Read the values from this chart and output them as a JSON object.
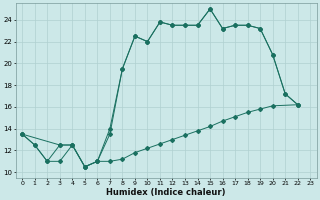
{
  "xlabel": "Humidex (Indice chaleur)",
  "bg_color": "#cce8e8",
  "grid_color_major": "#b0d0d0",
  "grid_color_minor": "#daeaea",
  "line_color": "#1a7060",
  "xlim": [
    -0.5,
    23.5
  ],
  "ylim": [
    9.5,
    25.5
  ],
  "xticks": [
    0,
    1,
    2,
    3,
    4,
    5,
    6,
    7,
    8,
    9,
    10,
    11,
    12,
    13,
    14,
    15,
    16,
    17,
    18,
    19,
    20,
    21,
    22,
    23
  ],
  "yticks": [
    10,
    12,
    14,
    16,
    18,
    20,
    22,
    24
  ],
  "line1_x": [
    0,
    1,
    2,
    3,
    4,
    5,
    6,
    7,
    8,
    9,
    10,
    11,
    12,
    13,
    14,
    15,
    16,
    17,
    18,
    19,
    20,
    21,
    22
  ],
  "line1_y": [
    13.5,
    12.5,
    11.0,
    11.0,
    12.5,
    10.5,
    11.0,
    13.5,
    19.5,
    22.5,
    22.0,
    23.8,
    23.5,
    23.5,
    23.5,
    25.0,
    23.2,
    23.5,
    23.5,
    23.2,
    20.8,
    17.2,
    16.2
  ],
  "line2_x": [
    0,
    3,
    4,
    5,
    6,
    7,
    8,
    9,
    10,
    11,
    12,
    13,
    14,
    15,
    16,
    17,
    18,
    19,
    20,
    22
  ],
  "line2_y": [
    13.5,
    12.5,
    12.5,
    10.5,
    11.0,
    11.0,
    11.2,
    11.8,
    12.2,
    12.6,
    13.0,
    13.4,
    13.8,
    14.2,
    14.7,
    15.1,
    15.5,
    15.8,
    16.1,
    16.2
  ],
  "line3_x": [
    0,
    1,
    2,
    3,
    4,
    5,
    6,
    7,
    8,
    9,
    10,
    11,
    12,
    13,
    14,
    15,
    16,
    17,
    18,
    19,
    20,
    21,
    22
  ],
  "line3_y": [
    13.5,
    12.5,
    11.0,
    12.5,
    12.5,
    10.5,
    11.0,
    14.0,
    19.5,
    22.5,
    22.0,
    23.8,
    23.5,
    23.5,
    23.5,
    25.0,
    23.2,
    23.5,
    23.5,
    23.2,
    20.8,
    17.2,
    16.2
  ]
}
